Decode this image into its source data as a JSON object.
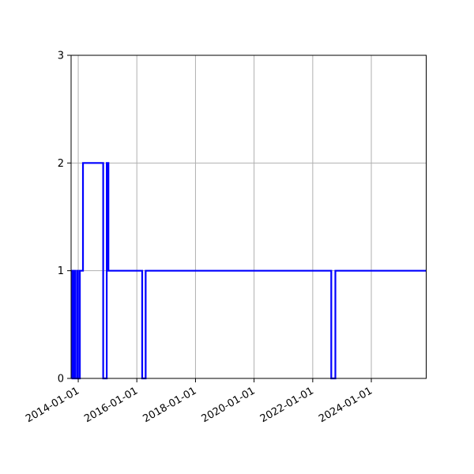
{
  "figure": {
    "background": "#ffffff"
  },
  "chart_data": {
    "type": "line",
    "subtype": "step-post",
    "title": "",
    "xlabel": "",
    "ylabel": "",
    "grid": {
      "visible": true,
      "color": "#b0b0b0"
    },
    "spine_color": "#000000",
    "tick_color": "#000000",
    "x_axis": {
      "min": "2013-10-04",
      "max": "2025-11-15",
      "tick_labels": [
        "2014-01-01",
        "2016-01-01",
        "2018-01-01",
        "2020-01-01",
        "2022-01-01",
        "2024-01-01"
      ],
      "tick_rotation_deg": 30
    },
    "y_axis": {
      "min": 0,
      "max": 3,
      "tick_labels": [
        "0",
        "1",
        "2",
        "3"
      ],
      "tick_values": [
        0,
        1,
        2,
        3
      ]
    },
    "series": [
      {
        "name": "step-series",
        "color": "#0000ff",
        "linewidth": 2.2,
        "points": [
          [
            "2013-10-04",
            1
          ],
          [
            "2013-10-20",
            0
          ],
          [
            "2013-11-05",
            1
          ],
          [
            "2013-11-22",
            0
          ],
          [
            "2013-12-16",
            1
          ],
          [
            "2013-12-29",
            0
          ],
          [
            "2014-01-21",
            1
          ],
          [
            "2014-03-01",
            2
          ],
          [
            "2014-11-08",
            0
          ],
          [
            "2014-12-22",
            2
          ],
          [
            "2015-01-12",
            1
          ],
          [
            "2016-03-08",
            0
          ],
          [
            "2016-04-20",
            1
          ],
          [
            "2022-08-20",
            0
          ],
          [
            "2022-10-10",
            1
          ],
          [
            "2025-11-15",
            1
          ]
        ]
      }
    ]
  }
}
